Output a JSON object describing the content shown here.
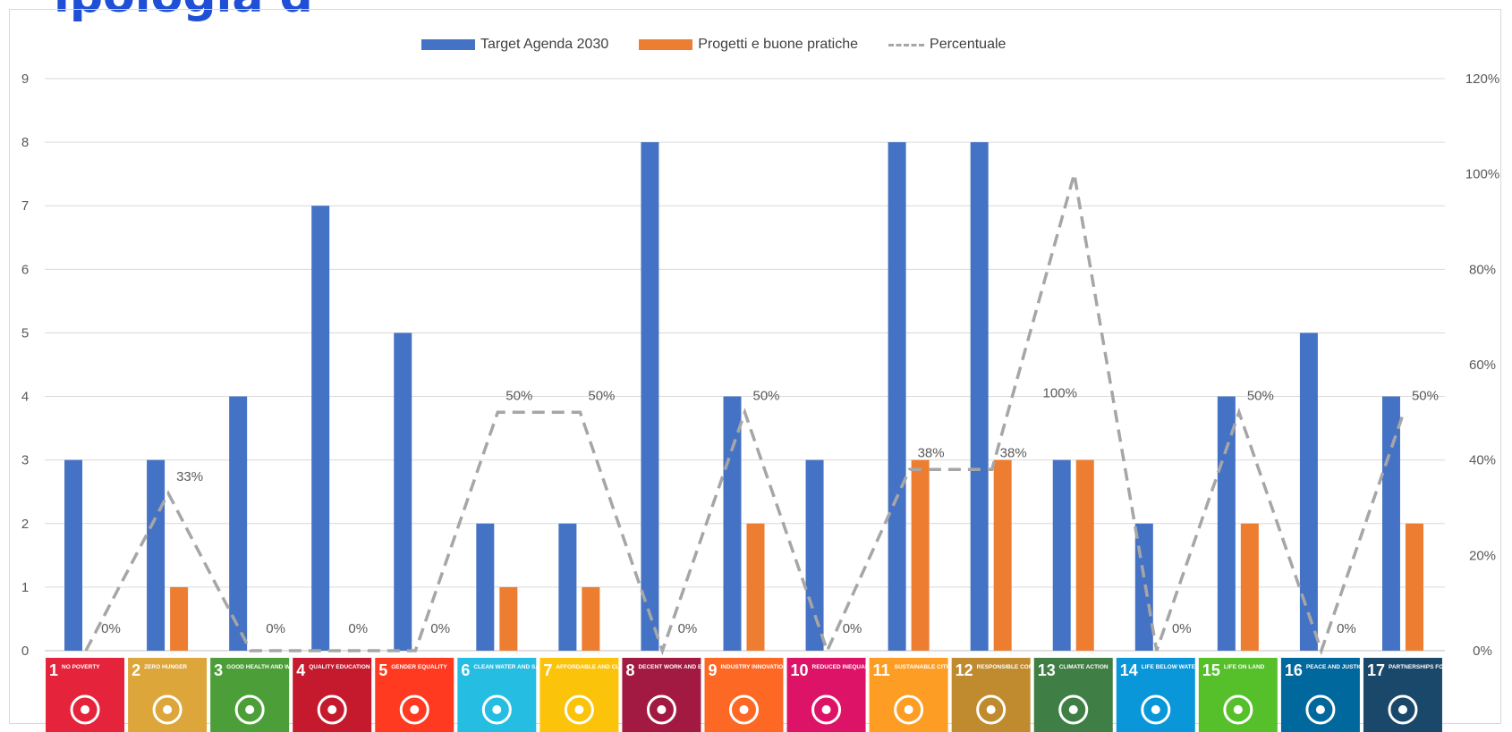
{
  "page": {
    "title": "ipologia d"
  },
  "chart_data": {
    "type": "bar",
    "categories": [
      "1",
      "2",
      "3",
      "4",
      "5",
      "6",
      "7",
      "8",
      "9",
      "10",
      "11",
      "12",
      "13",
      "14",
      "15",
      "16",
      "17"
    ],
    "series": [
      {
        "name": "Target Agenda 2030",
        "type": "bar",
        "axis": "left",
        "color": "#4472c4",
        "values": [
          3,
          3,
          4,
          7,
          5,
          2,
          2,
          8,
          4,
          3,
          8,
          8,
          3,
          2,
          4,
          5,
          4
        ]
      },
      {
        "name": "Progetti e buone pratiche",
        "type": "bar",
        "axis": "left",
        "color": "#ed7d31",
        "values": [
          0,
          1,
          0,
          0,
          0,
          1,
          1,
          0,
          2,
          0,
          3,
          3,
          3,
          0,
          2,
          0,
          2
        ]
      },
      {
        "name": "Percentuale",
        "type": "line",
        "axis": "right",
        "color": "#a6a6a6",
        "dash": true,
        "values": [
          0,
          0.33,
          0,
          0,
          0,
          0.5,
          0.5,
          0,
          0.5,
          0,
          0.38,
          0.38,
          1,
          0,
          0.5,
          0,
          0.5
        ],
        "labels": [
          "0%",
          "33%",
          "0%",
          "0%",
          "0%",
          "50%",
          "50%",
          "0%",
          "50%",
          "0%",
          "38%",
          "38%",
          "100%",
          "0%",
          "50%",
          "0%",
          "50%"
        ]
      }
    ],
    "ylim": [
      0,
      9
    ],
    "yticks": [
      "0",
      "1",
      "2",
      "3",
      "4",
      "5",
      "6",
      "7",
      "8",
      "9"
    ],
    "y2lim": [
      0,
      1.2
    ],
    "y2ticks": [
      "0%",
      "20%",
      "40%",
      "60%",
      "80%",
      "100%",
      "120%"
    ],
    "legend": "top",
    "grid": true,
    "sdg_tiles": [
      {
        "num": "1",
        "text": "NO POVERTY",
        "color": "#e5243b",
        "icon": "family-icon"
      },
      {
        "num": "2",
        "text": "ZERO HUNGER",
        "color": "#dda63a",
        "icon": "bowl-icon"
      },
      {
        "num": "3",
        "text": "GOOD HEALTH AND WELL-BEING",
        "color": "#4c9f38",
        "icon": "heartbeat-icon"
      },
      {
        "num": "4",
        "text": "QUALITY EDUCATION",
        "color": "#c5192d",
        "icon": "book-icon"
      },
      {
        "num": "5",
        "text": "GENDER EQUALITY",
        "color": "#ff3a21",
        "icon": "gender-icon"
      },
      {
        "num": "6",
        "text": "CLEAN WATER AND SANITATION",
        "color": "#26bde2",
        "icon": "water-glass-icon"
      },
      {
        "num": "7",
        "text": "AFFORDABLE AND CLEAN ENERGY",
        "color": "#fcc30b",
        "icon": "sun-icon"
      },
      {
        "num": "8",
        "text": "DECENT WORK AND ECONOMIC GROWTH",
        "color": "#a21942",
        "icon": "growth-chart-icon"
      },
      {
        "num": "9",
        "text": "INDUSTRY INNOVATION AND INFRASTRUCTURE",
        "color": "#fd6925",
        "icon": "cubes-icon"
      },
      {
        "num": "10",
        "text": "REDUCED INEQUALITIES",
        "color": "#dd1367",
        "icon": "equal-icon"
      },
      {
        "num": "11",
        "text": "SUSTAINABLE CITIES AND COMMUNITIES",
        "color": "#fd9d24",
        "icon": "buildings-icon"
      },
      {
        "num": "12",
        "text": "RESPONSIBLE CONSUMPTION AND PRODUCTION",
        "color": "#bf8b2e",
        "icon": "infinity-icon"
      },
      {
        "num": "13",
        "text": "CLIMATE ACTION",
        "color": "#3f7e44",
        "icon": "eye-globe-icon"
      },
      {
        "num": "14",
        "text": "LIFE BELOW WATER",
        "color": "#0a97d9",
        "icon": "fish-icon"
      },
      {
        "num": "15",
        "text": "LIFE ON LAND",
        "color": "#56c02b",
        "icon": "tree-icon"
      },
      {
        "num": "16",
        "text": "PEACE AND JUSTICE STRONG INSTITUTIONS",
        "color": "#00689d",
        "icon": "dove-icon"
      },
      {
        "num": "17",
        "text": "PARTNERSHIPS FOR THE GOALS",
        "color": "#19486a",
        "icon": "flower-rings-icon"
      }
    ]
  }
}
